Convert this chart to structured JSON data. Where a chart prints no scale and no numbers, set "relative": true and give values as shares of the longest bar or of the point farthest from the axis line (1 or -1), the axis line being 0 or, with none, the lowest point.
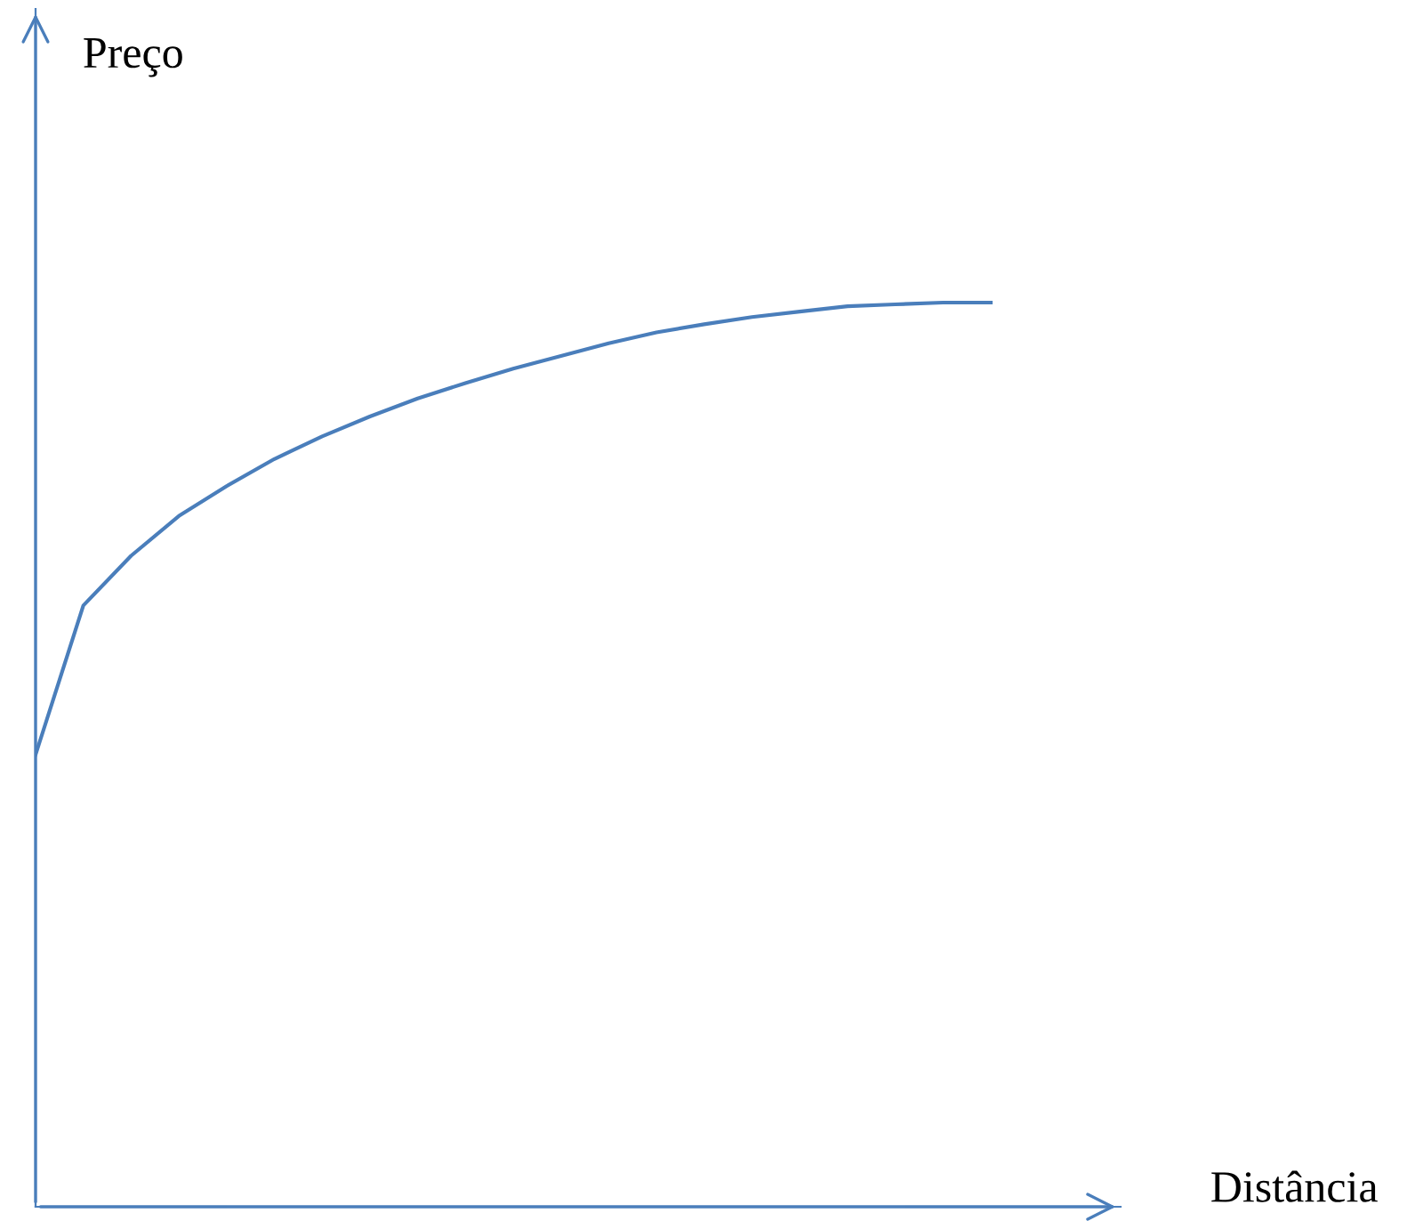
{
  "chart_data": {
    "type": "line",
    "relative": true,
    "xlabel": "Distância",
    "annotations": [
      "Preço"
    ],
    "categories": [
      null,
      null,
      null,
      null,
      null,
      null,
      null,
      null,
      null,
      null,
      null,
      null,
      null,
      null,
      null,
      null,
      null,
      null,
      null,
      null,
      null
    ],
    "series": [
      {
        "color": "#4a7ebb",
        "values": [
          0.5,
          0.665,
          0.72,
          0.764,
          0.797,
          0.827,
          0.852,
          0.874,
          0.894,
          0.911,
          0.927,
          0.941,
          0.955,
          0.967,
          0.976,
          0.984,
          0.99,
          0.996,
          0.998,
          1.0,
          1.0
        ]
      }
    ],
    "grid": false,
    "legend": false,
    "marker": "none",
    "line_style": "solid"
  }
}
